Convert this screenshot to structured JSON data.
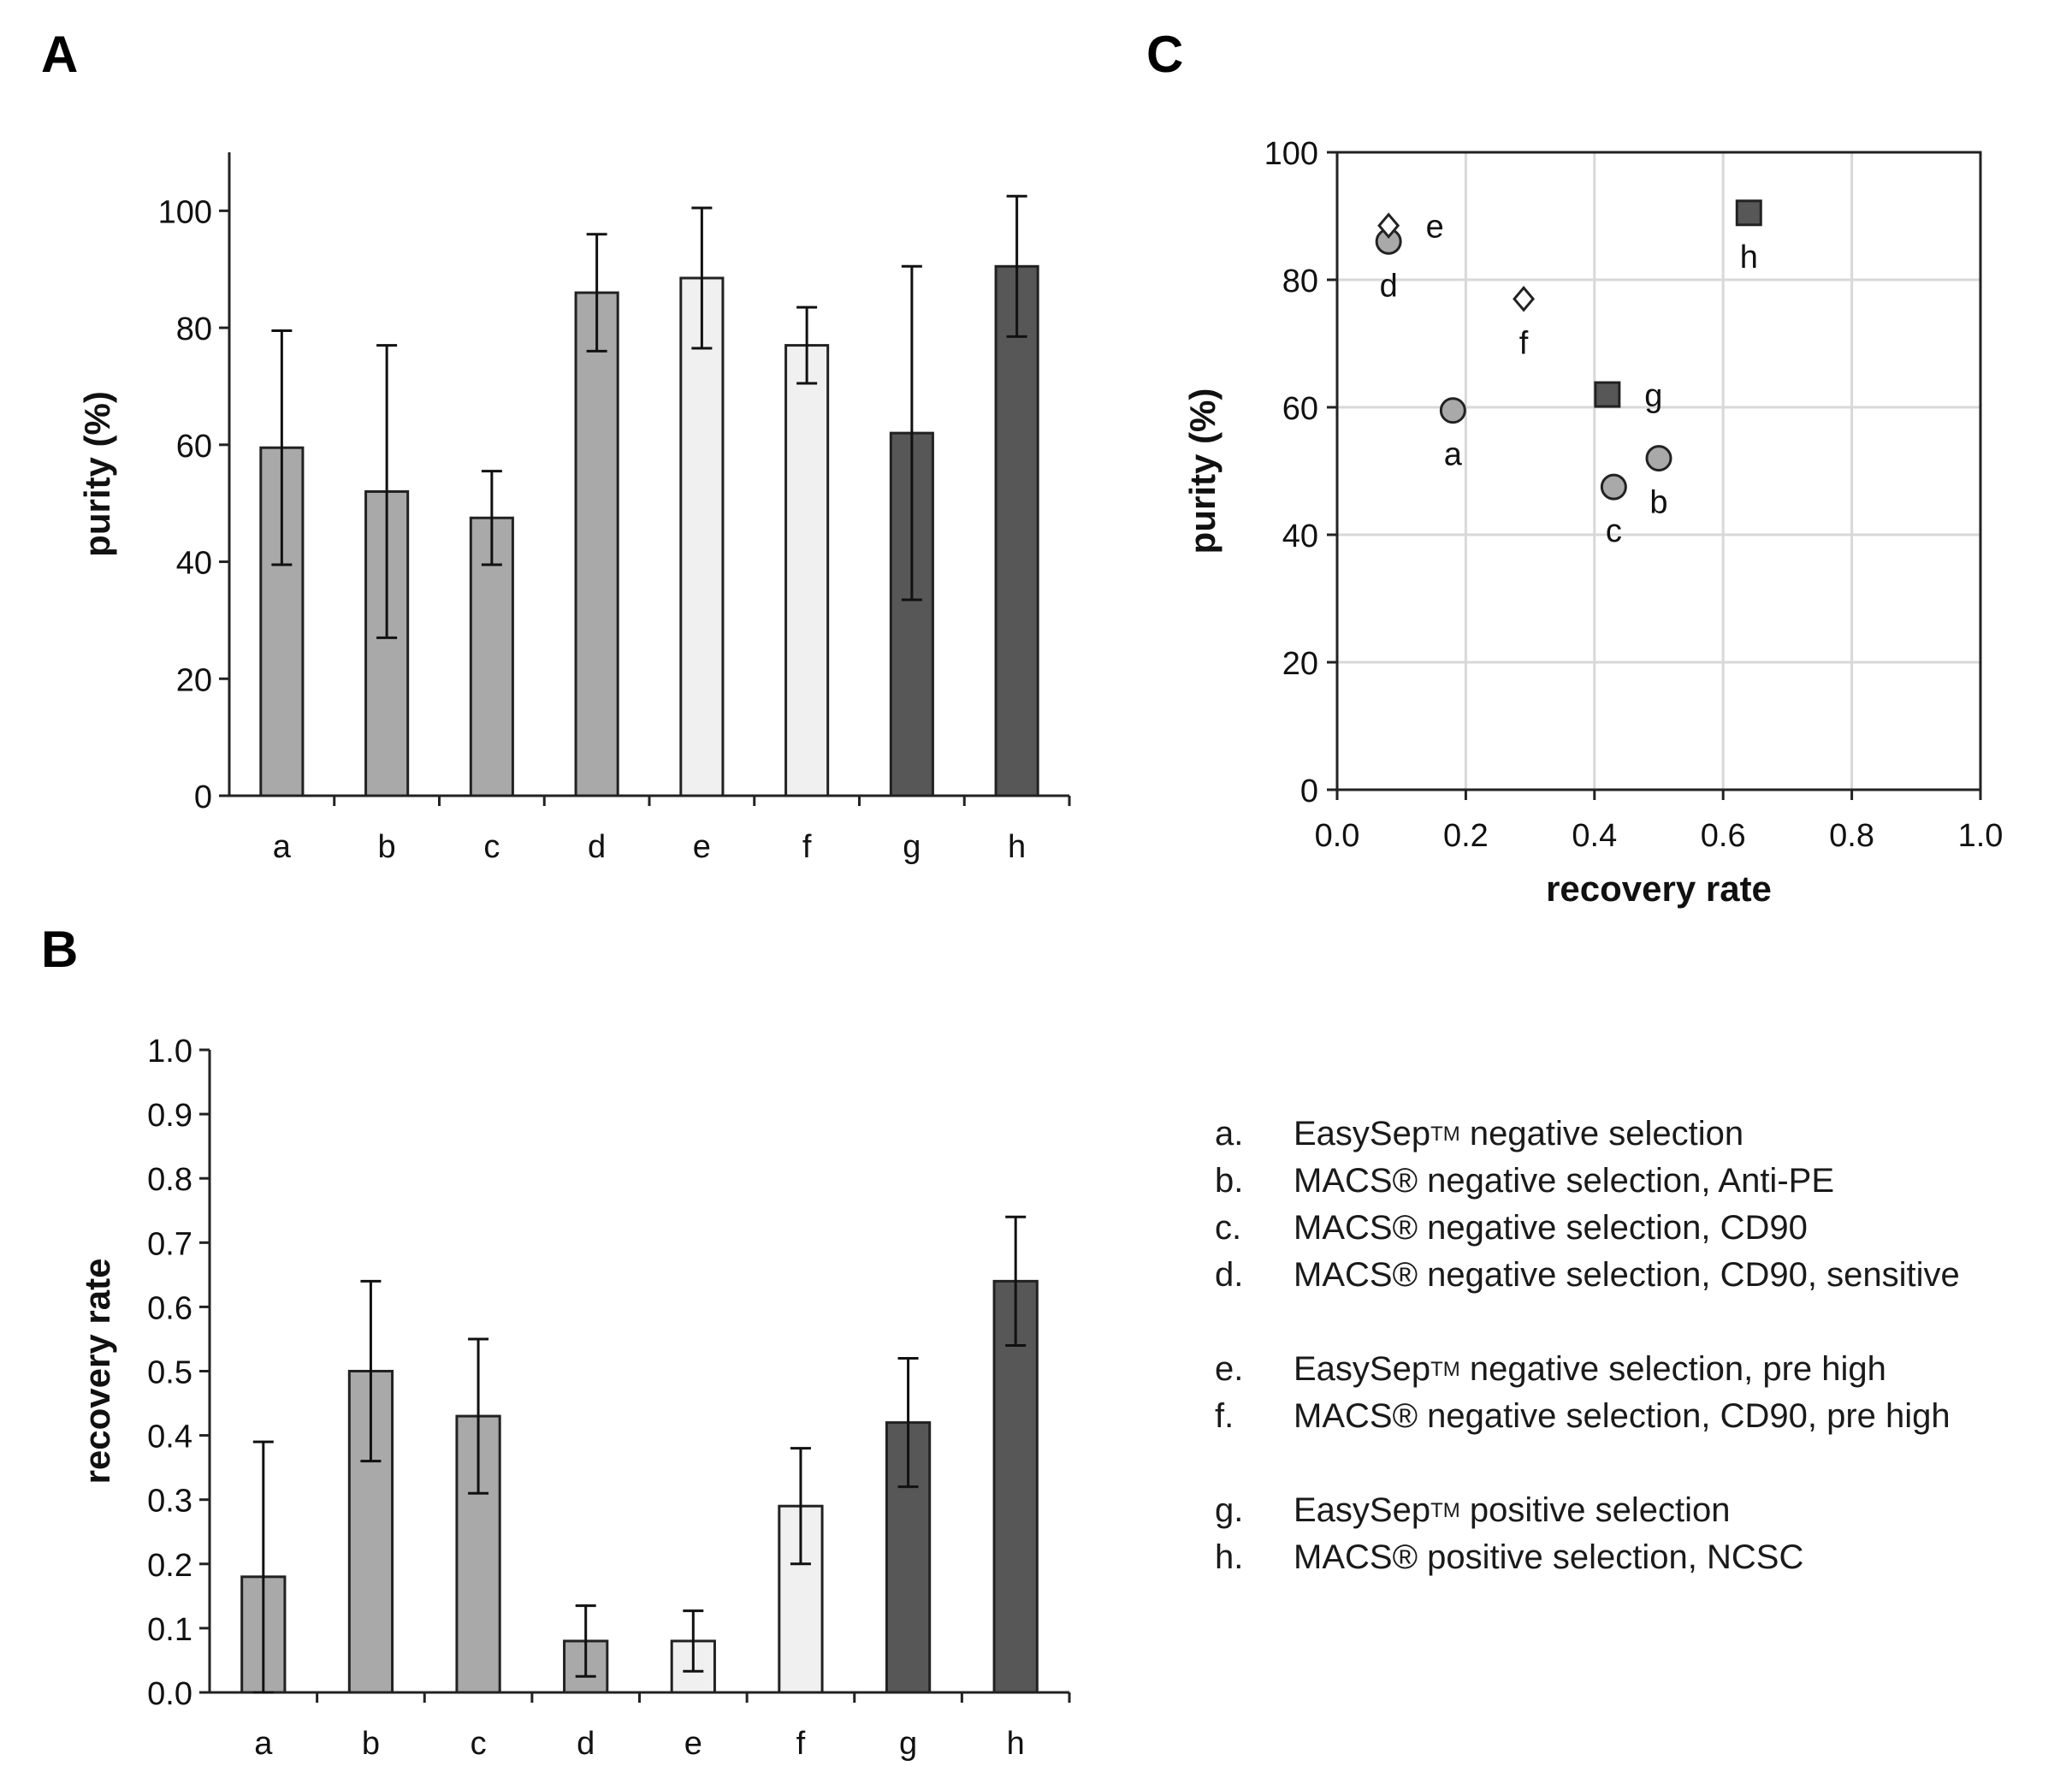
{
  "panels": [
    {
      "label": "A"
    },
    {
      "label": "B"
    },
    {
      "label": "C"
    }
  ],
  "chart_data": [
    {
      "panel": "A",
      "type": "bar",
      "categories": [
        "a",
        "b",
        "c",
        "d",
        "e",
        "f",
        "g",
        "h"
      ],
      "values": [
        59.5,
        52,
        47.5,
        86,
        88.5,
        77,
        62,
        90.5
      ],
      "errors": [
        20,
        25,
        8,
        10,
        12,
        6.5,
        28.5,
        12
      ],
      "colors": [
        "#a9a9a9",
        "#a9a9a9",
        "#a9a9a9",
        "#a9a9a9",
        "#f0f0f0",
        "#f0f0f0",
        "#575757",
        "#575757"
      ],
      "ylabel": "purity (%)",
      "xlabel": "",
      "ylim": [
        0,
        110
      ],
      "yticks": [
        0,
        20,
        40,
        60,
        80,
        100
      ],
      "ytick_labels": [
        "0",
        "20",
        "40",
        "60",
        "80",
        "100"
      ],
      "grid": false
    },
    {
      "panel": "B",
      "type": "bar",
      "categories": [
        "a",
        "b",
        "c",
        "d",
        "e",
        "f",
        "g",
        "h"
      ],
      "values": [
        0.18,
        0.5,
        0.43,
        0.08,
        0.08,
        0.29,
        0.42,
        0.64
      ],
      "errors": [
        0.21,
        0.14,
        0.12,
        0.055,
        0.047,
        0.09,
        0.1,
        0.1
      ],
      "colors": [
        "#a9a9a9",
        "#a9a9a9",
        "#a9a9a9",
        "#a9a9a9",
        "#f0f0f0",
        "#f0f0f0",
        "#575757",
        "#575757"
      ],
      "ylabel": "recovery rate",
      "xlabel": "",
      "ylim": [
        0,
        1.0
      ],
      "yticks": [
        0,
        0.1,
        0.2,
        0.3,
        0.4,
        0.5,
        0.6,
        0.7,
        0.8,
        0.9,
        1.0
      ],
      "ytick_labels": [
        "0.0",
        "0.1",
        "0.2",
        "0.3",
        "0.4",
        "0.5",
        "0.6",
        "0.7",
        "0.8",
        "0.9",
        "1.0"
      ],
      "grid": false
    },
    {
      "panel": "C",
      "type": "scatter",
      "xlabel": "recovery rate",
      "ylabel": "purity (%)",
      "xlim": [
        0,
        1.0
      ],
      "ylim": [
        0,
        100
      ],
      "xticks": [
        0,
        0.2,
        0.4,
        0.6,
        0.8,
        1.0
      ],
      "xtick_labels": [
        "0.0",
        "0.2",
        "0.4",
        "0.6",
        "0.8",
        "1.0"
      ],
      "yticks": [
        0,
        20,
        40,
        60,
        80,
        100
      ],
      "ytick_labels": [
        "0",
        "20",
        "40",
        "60",
        "80",
        "100"
      ],
      "grid": true,
      "points": [
        {
          "label": "a",
          "x": 0.18,
          "y": 59.5,
          "marker": "circle",
          "color": "#a9a9a9",
          "label_pos": "below"
        },
        {
          "label": "b",
          "x": 0.5,
          "y": 52,
          "marker": "circle",
          "color": "#a9a9a9",
          "label_pos": "below"
        },
        {
          "label": "c",
          "x": 0.43,
          "y": 47.5,
          "marker": "circle",
          "color": "#a9a9a9",
          "label_pos": "below"
        },
        {
          "label": "d",
          "x": 0.08,
          "y": 86,
          "marker": "circle",
          "color": "#a9a9a9",
          "label_pos": "below"
        },
        {
          "label": "e",
          "x": 0.08,
          "y": 88.5,
          "marker": "diamond",
          "color": "#ffffff",
          "label_pos": "right"
        },
        {
          "label": "f",
          "x": 0.29,
          "y": 77,
          "marker": "diamond",
          "color": "#ffffff",
          "label_pos": "below"
        },
        {
          "label": "g",
          "x": 0.42,
          "y": 62,
          "marker": "square",
          "color": "#575757",
          "label_pos": "right"
        },
        {
          "label": "h",
          "x": 0.64,
          "y": 90.5,
          "marker": "square",
          "color": "#575757",
          "label_pos": "below"
        }
      ]
    }
  ],
  "legend": {
    "groups": [
      [
        {
          "key": "a.",
          "brand": "EasySep",
          "tm": "TM",
          "rest": " negative selection"
        },
        {
          "key": "b.",
          "brand": "MACS®",
          "tm": "",
          "rest": " negative selection, Anti-PE"
        },
        {
          "key": "c.",
          "brand": "MACS®",
          "tm": "",
          "rest": " negative selection, CD90"
        },
        {
          "key": "d.",
          "brand": "MACS®",
          "tm": "",
          "rest": " negative selection, CD90, sensitive"
        }
      ],
      [
        {
          "key": "e.",
          "brand": "EasySep",
          "tm": "TM",
          "rest": " negative selection, pre high"
        },
        {
          "key": "f.",
          "brand": "MACS®",
          "tm": "",
          "rest": " negative selection, CD90, pre high"
        }
      ],
      [
        {
          "key": "g.",
          "brand": "EasySep",
          "tm": "TM",
          "rest": " positive selection"
        },
        {
          "key": "h.",
          "brand": "MACS®",
          "tm": "",
          "rest": " positive selection, NCSC"
        }
      ]
    ]
  }
}
